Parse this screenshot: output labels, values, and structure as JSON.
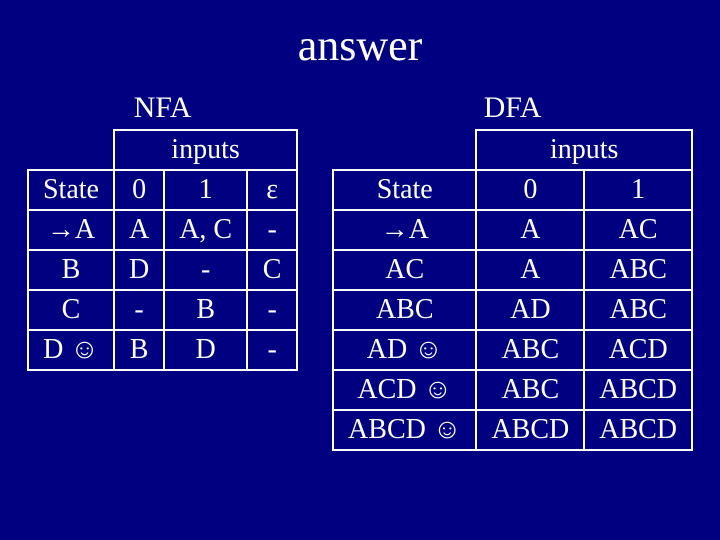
{
  "title": "answer",
  "nfa": {
    "label": "NFA",
    "inputs_label": "inputs",
    "columns": [
      "State",
      "0",
      "1",
      "ε"
    ],
    "rows": [
      [
        "→A",
        "A",
        "A, C",
        "-"
      ],
      [
        "B",
        "D",
        "-",
        "C"
      ],
      [
        "C",
        "-",
        "B",
        "-"
      ],
      [
        "D ☺",
        "B",
        "D",
        "-"
      ]
    ]
  },
  "dfa": {
    "label": "DFA",
    "inputs_label": "inputs",
    "columns": [
      "State",
      "0",
      "1"
    ],
    "rows": [
      [
        "→A",
        "A",
        "AC"
      ],
      [
        "AC",
        "A",
        "ABC"
      ],
      [
        "ABC",
        "AD",
        "ABC"
      ],
      [
        "AD ☺",
        "ABC",
        "ACD"
      ],
      [
        "ACD ☺",
        "ABC",
        "ABCD"
      ],
      [
        "ABCD ☺",
        "ABCD",
        "ABCD"
      ]
    ]
  },
  "style": {
    "background_color": "#000080",
    "text_color": "#ffffff",
    "border_color": "#ffffff",
    "title_fontsize": 44,
    "table_title_fontsize": 30,
    "cell_fontsize": 28,
    "font_family": "Times New Roman"
  }
}
